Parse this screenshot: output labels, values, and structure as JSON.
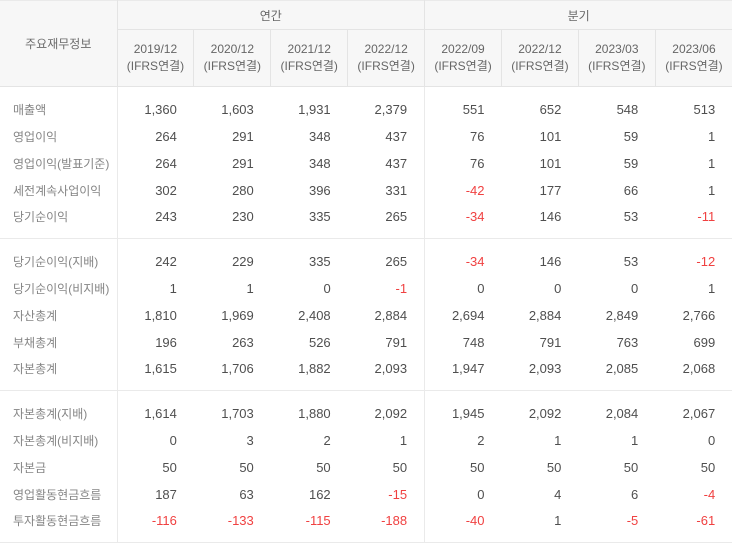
{
  "table": {
    "corner_label": "주요재무정보",
    "group_headers": [
      {
        "label": "연간",
        "span": 4
      },
      {
        "label": "분기",
        "span": 4
      }
    ],
    "columns": [
      {
        "period": "2019/12",
        "basis": "(IFRS연결)",
        "section": "annual"
      },
      {
        "period": "2020/12",
        "basis": "(IFRS연결)",
        "section": "annual"
      },
      {
        "period": "2021/12",
        "basis": "(IFRS연결)",
        "section": "annual"
      },
      {
        "period": "2022/12",
        "basis": "(IFRS연결)",
        "section": "annual"
      },
      {
        "period": "2022/09",
        "basis": "(IFRS연결)",
        "section": "quarterly"
      },
      {
        "period": "2022/12",
        "basis": "(IFRS연결)",
        "section": "quarterly"
      },
      {
        "period": "2023/03",
        "basis": "(IFRS연결)",
        "section": "quarterly"
      },
      {
        "period": "2023/06",
        "basis": "(IFRS연결)",
        "section": "quarterly"
      }
    ],
    "row_groups": [
      {
        "rows": [
          {
            "label": "매출액",
            "values": [
              "1,360",
              "1,603",
              "1,931",
              "2,379",
              "551",
              "652",
              "548",
              "513"
            ]
          },
          {
            "label": "영업이익",
            "values": [
              "264",
              "291",
              "348",
              "437",
              "76",
              "101",
              "59",
              "1"
            ]
          },
          {
            "label": "영업이익(발표기준)",
            "values": [
              "264",
              "291",
              "348",
              "437",
              "76",
              "101",
              "59",
              "1"
            ]
          },
          {
            "label": "세전계속사업이익",
            "values": [
              "302",
              "280",
              "396",
              "331",
              "-42",
              "177",
              "66",
              "1"
            ]
          },
          {
            "label": "당기순이익",
            "values": [
              "243",
              "230",
              "335",
              "265",
              "-34",
              "146",
              "53",
              "-11"
            ]
          }
        ]
      },
      {
        "rows": [
          {
            "label": "당기순이익(지배)",
            "values": [
              "242",
              "229",
              "335",
              "265",
              "-34",
              "146",
              "53",
              "-12"
            ]
          },
          {
            "label": "당기순이익(비지배)",
            "values": [
              "1",
              "1",
              "0",
              "-1",
              "0",
              "0",
              "0",
              "1"
            ]
          },
          {
            "label": "자산총계",
            "values": [
              "1,810",
              "1,969",
              "2,408",
              "2,884",
              "2,694",
              "2,884",
              "2,849",
              "2,766"
            ]
          },
          {
            "label": "부채총계",
            "values": [
              "196",
              "263",
              "526",
              "791",
              "748",
              "791",
              "763",
              "699"
            ]
          },
          {
            "label": "자본총계",
            "values": [
              "1,615",
              "1,706",
              "1,882",
              "2,093",
              "1,947",
              "2,093",
              "2,085",
              "2,068"
            ]
          }
        ]
      },
      {
        "rows": [
          {
            "label": "자본총계(지배)",
            "values": [
              "1,614",
              "1,703",
              "1,880",
              "2,092",
              "1,945",
              "2,092",
              "2,084",
              "2,067"
            ]
          },
          {
            "label": "자본총계(비지배)",
            "values": [
              "0",
              "3",
              "2",
              "1",
              "2",
              "1",
              "1",
              "0"
            ]
          },
          {
            "label": "자본금",
            "values": [
              "50",
              "50",
              "50",
              "50",
              "50",
              "50",
              "50",
              "50"
            ]
          },
          {
            "label": "영업활동현금흐름",
            "values": [
              "187",
              "63",
              "162",
              "-15",
              "0",
              "4",
              "6",
              "-4"
            ]
          },
          {
            "label": "투자활동현금흐름",
            "values": [
              "-116",
              "-133",
              "-115",
              "-188",
              "-40",
              "1",
              "-5",
              "-61"
            ]
          }
        ]
      }
    ]
  },
  "colors": {
    "header_bg": "#f7f7f7",
    "border": "#e4e4e4",
    "border_light": "#eaeaea",
    "header_text": "#666666",
    "label_text": "#858585",
    "value_text": "#4f4f4f",
    "negative": "#f04141"
  }
}
